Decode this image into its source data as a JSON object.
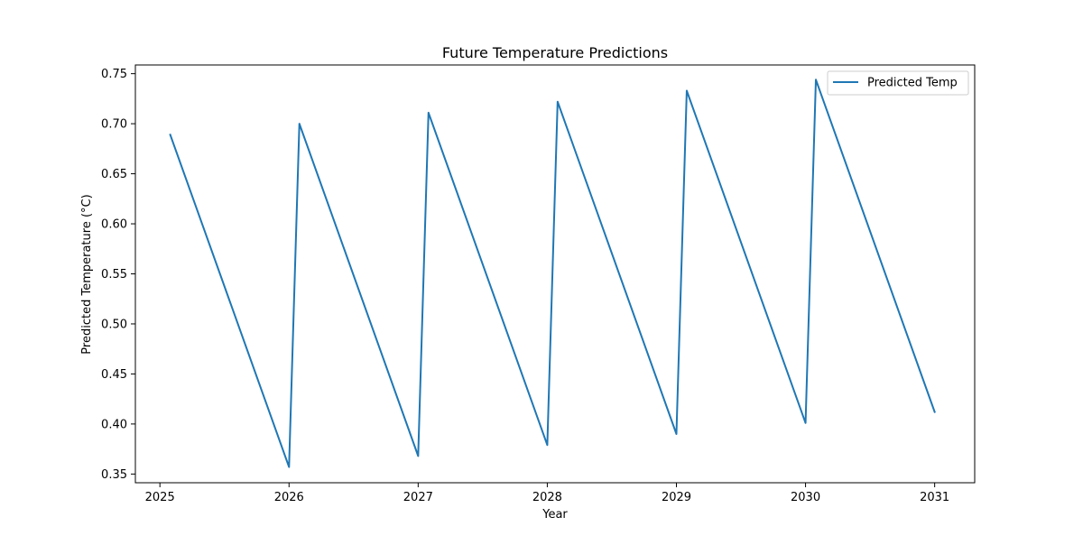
{
  "chart_data": {
    "type": "line",
    "title": "Future Temperature Predictions",
    "xlabel": "Year",
    "ylabel": "Predicted Temperature (°C)",
    "xlim": [
      2024.81,
      2031.31
    ],
    "ylim": [
      0.3413,
      0.7587
    ],
    "xticks": [
      2025,
      2026,
      2027,
      2028,
      2029,
      2030,
      2031
    ],
    "xtick_labels": [
      "2025",
      "2026",
      "2027",
      "2028",
      "2029",
      "2030",
      "2031"
    ],
    "yticks": [
      0.35,
      0.4,
      0.45,
      0.5,
      0.55,
      0.6,
      0.65,
      0.7,
      0.75
    ],
    "ytick_labels": [
      "0.35",
      "0.40",
      "0.45",
      "0.50",
      "0.55",
      "0.60",
      "0.65",
      "0.70",
      "0.75"
    ],
    "grid": false,
    "legend_placement": "top-right",
    "series": [
      {
        "name": "Predicted Temp",
        "color": "#1f77b4",
        "x": [
          2025.08,
          2026.0,
          2026.08,
          2027.0,
          2027.08,
          2028.0,
          2028.08,
          2029.0,
          2029.08,
          2030.0,
          2030.08,
          2031.0
        ],
        "y": [
          0.689,
          0.357,
          0.7,
          0.368,
          0.711,
          0.379,
          0.722,
          0.39,
          0.733,
          0.401,
          0.744,
          0.412
        ]
      }
    ]
  }
}
